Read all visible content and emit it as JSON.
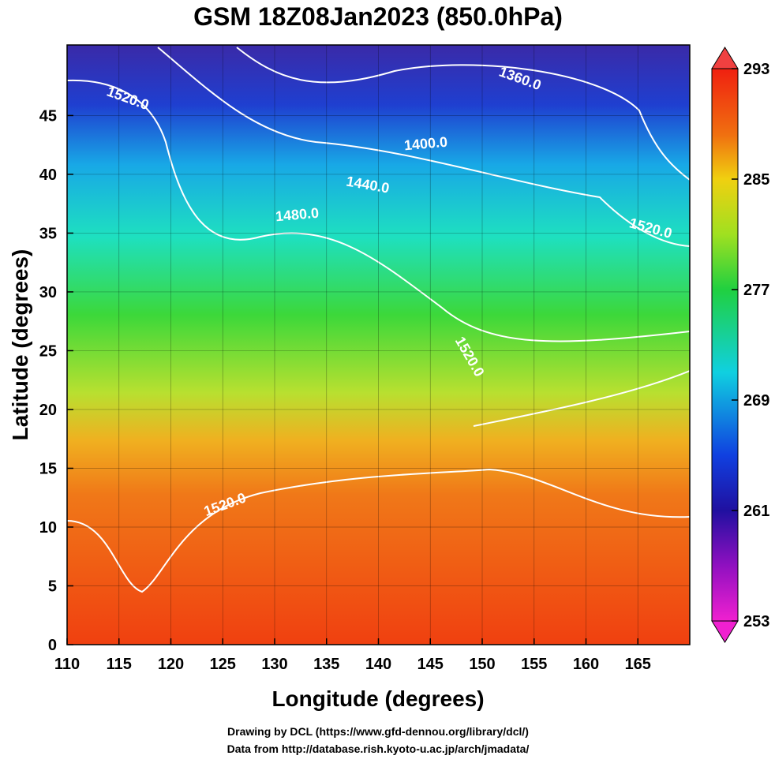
{
  "title": "GSM 18Z08Jan2023 (850.0hPa)",
  "map": {
    "x_label": "Longitude (degrees)",
    "y_label": "Latitude  (degrees)",
    "xlim": [
      110,
      170
    ],
    "ylim": [
      0,
      51
    ],
    "xticks": [
      110,
      115,
      120,
      125,
      130,
      135,
      140,
      145,
      150,
      155,
      160,
      165
    ],
    "yticks": [
      0,
      5,
      10,
      15,
      20,
      25,
      30,
      35,
      40,
      45
    ],
    "contour_labels": [
      "1520.0",
      "1360.0",
      "1400.0",
      "1440.0",
      "1480.0",
      "1520.0",
      "1520.0",
      "1520.0"
    ]
  },
  "colorbar": {
    "lim": [
      253,
      293
    ],
    "ticks": [
      253,
      261,
      269,
      277,
      285,
      293
    ]
  },
  "credits": [
    "Drawing by DCL (https://www.gfd-dennou.org/library/dcl/)",
    "Data from http://database.rish.kyoto-u.ac.jp/arch/jmadata/"
  ]
}
